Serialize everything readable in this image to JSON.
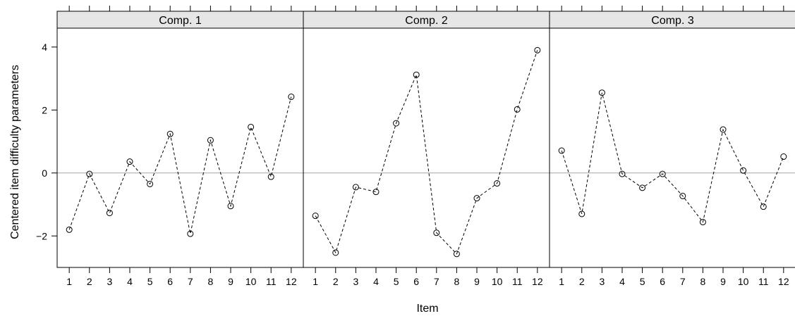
{
  "chart_data": {
    "type": "line",
    "xlabel": "Item",
    "ylabel": "Centered item difficulty parameters",
    "x": [
      1,
      2,
      3,
      4,
      5,
      6,
      7,
      8,
      9,
      10,
      11,
      12
    ],
    "x_tick_labels": [
      "1",
      "2",
      "3",
      "4",
      "5",
      "6",
      "7",
      "8",
      "9",
      "10",
      "11",
      "12"
    ],
    "y_ticks": [
      -2,
      0,
      2,
      4
    ],
    "y_tick_labels": [
      "−2",
      "0",
      "2",
      "4"
    ],
    "ylim": [
      -3.0,
      4.6
    ],
    "xlim": [
      0.4,
      12.6
    ],
    "reference_line": 0,
    "grid": false,
    "line_style": "dashed",
    "marker": "open-circle",
    "colors": {
      "line": "#000000",
      "reference_line": "#a6a6a6",
      "strip_background": "#e6e6e6",
      "panel_border": "#000000"
    },
    "panels": [
      {
        "title": "Comp. 1",
        "values": [
          -1.8,
          -0.03,
          -1.27,
          0.36,
          -0.35,
          1.24,
          -1.93,
          1.04,
          -1.05,
          1.46,
          -0.12,
          2.42
        ]
      },
      {
        "title": "Comp. 2",
        "values": [
          -1.36,
          -2.53,
          -0.45,
          -0.6,
          1.58,
          3.12,
          -1.9,
          -2.57,
          -0.8,
          -0.33,
          2.02,
          3.9
        ]
      },
      {
        "title": "Comp. 3",
        "values": [
          0.71,
          -1.3,
          2.55,
          -0.03,
          -0.47,
          -0.03,
          -0.73,
          -1.56,
          1.38,
          0.08,
          -1.07,
          0.52
        ]
      }
    ]
  }
}
